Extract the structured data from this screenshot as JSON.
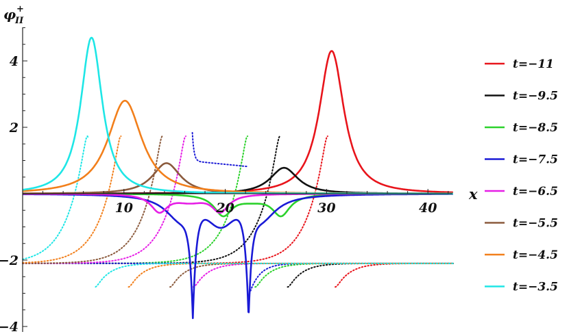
{
  "chart_data": {
    "type": "line",
    "ylabel_main": "φ",
    "ylabel_sub": "II",
    "ylabel_sup": "+",
    "xlabel": "x",
    "xlim": [
      0,
      42.5
    ],
    "ylim": [
      -4.1,
      5.1
    ],
    "x_ticks": [
      10,
      20,
      30,
      40
    ],
    "y_ticks": [
      -4,
      -2,
      2,
      4
    ],
    "grid": false,
    "legend_position": "right",
    "series": [
      {
        "name": "t=−11",
        "color": "#e8141b",
        "params": {
          "kind": "single",
          "center": 30.5,
          "amp": 4.3,
          "w": 1.6
        }
      },
      {
        "name": "t=−9.5",
        "color": "#111111",
        "params": {
          "kind": "pos",
          "center": 25.8,
          "amp": 0.78,
          "w": 1.8
        }
      },
      {
        "name": "t=−8.5",
        "color": "#2bd12b",
        "params": {
          "kind": "double",
          "centers": [
            19.8,
            25.5
          ],
          "amp": -0.65,
          "w": 1.1,
          "mid": -0.3
        }
      },
      {
        "name": "t=−7.5",
        "color": "#1a1ad6",
        "params": {
          "kind": "blue",
          "centers": [
            16.8,
            22.3
          ],
          "amp": -3.6,
          "mid": -0.75
        }
      },
      {
        "name": "t=−6.5",
        "color": "#e61ee6",
        "params": {
          "kind": "double",
          "centers": [
            13.5,
            19.5
          ],
          "amp": -0.55,
          "w": 1.05,
          "mid": -0.3
        }
      },
      {
        "name": "t=−5.5",
        "color": "#8b5a3c",
        "params": {
          "kind": "pos",
          "center": 14.2,
          "amp": 0.92,
          "w": 1.8
        }
      },
      {
        "name": "t=−4.5",
        "color": "#f27f1b",
        "params": {
          "kind": "single",
          "center": 10.1,
          "amp": 2.8,
          "w": 2.2
        }
      },
      {
        "name": "t=−3.5",
        "color": "#1ee6e6",
        "params": {
          "kind": "single",
          "center": 6.8,
          "amp": 4.7,
          "w": 1.4
        }
      }
    ],
    "phase_curves": [
      {
        "color": "#e8141b",
        "center": 30.5
      },
      {
        "color": "#111111",
        "center": 25.8
      },
      {
        "color": "#2bd12b",
        "center": 22.6
      },
      {
        "color": "#1a1ad6",
        "center": 19.5,
        "plateau": true
      },
      {
        "color": "#e61ee6",
        "center": 16.5
      },
      {
        "color": "#8b5a3c",
        "center": 14.2
      },
      {
        "color": "#f27f1b",
        "center": 10.1
      },
      {
        "color": "#1ee6e6",
        "center": 6.8
      }
    ]
  }
}
